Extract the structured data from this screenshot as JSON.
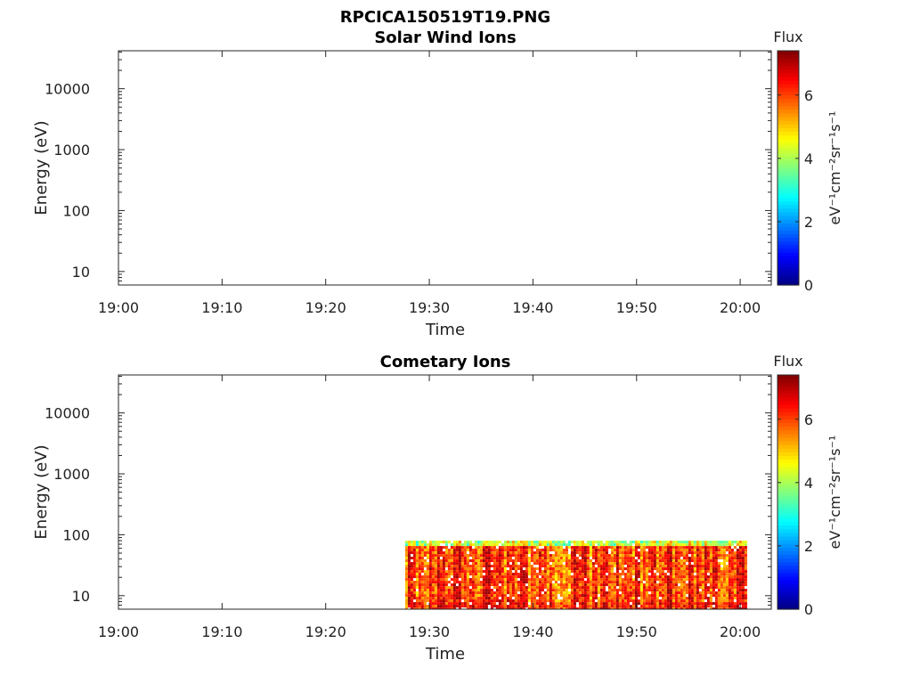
{
  "figure": {
    "title": "RPCICA150519T19.PNG"
  },
  "colormap": "jet",
  "chart_data": [
    {
      "type": "heatmap",
      "title": "Solar Wind Ions",
      "xlabel": "Time",
      "ylabel": "Energy (eV)",
      "x_ticks": [
        "19:00",
        "19:10",
        "19:20",
        "19:30",
        "19:40",
        "19:50",
        "20:00"
      ],
      "x_range": [
        "19:00",
        "20:03"
      ],
      "y_scale": "log",
      "y_ticks": [
        "10",
        "100",
        "1000",
        "10000"
      ],
      "y_range": [
        6,
        42000
      ],
      "colorbar": {
        "label": "Flux",
        "units": "eV⁻¹cm⁻²sr⁻¹s⁻¹",
        "range": [
          0,
          7.4
        ],
        "ticks": [
          "0",
          "2",
          "4",
          "6"
        ]
      },
      "data_regions": []
    },
    {
      "type": "heatmap",
      "title": "Cometary Ions",
      "xlabel": "Time",
      "ylabel": "Energy (eV)",
      "x_ticks": [
        "19:00",
        "19:10",
        "19:20",
        "19:30",
        "19:40",
        "19:50",
        "20:00"
      ],
      "x_range": [
        "19:00",
        "20:03"
      ],
      "y_scale": "log",
      "y_ticks": [
        "10",
        "100",
        "1000",
        "10000"
      ],
      "y_range": [
        6,
        42000
      ],
      "colorbar": {
        "label": "Flux",
        "units": "eV⁻¹cm⁻²sr⁻¹s⁻¹",
        "range": [
          0,
          7.4
        ],
        "ticks": [
          "0",
          "2",
          "4",
          "6"
        ]
      },
      "data_regions": [
        {
          "t_start": "19:27:40",
          "t_end": "20:00:30",
          "energy_min": 6,
          "energy_max": 80,
          "flux_min": 2.5,
          "flux_max": 7.2,
          "typical_flux": 6
        }
      ]
    }
  ]
}
